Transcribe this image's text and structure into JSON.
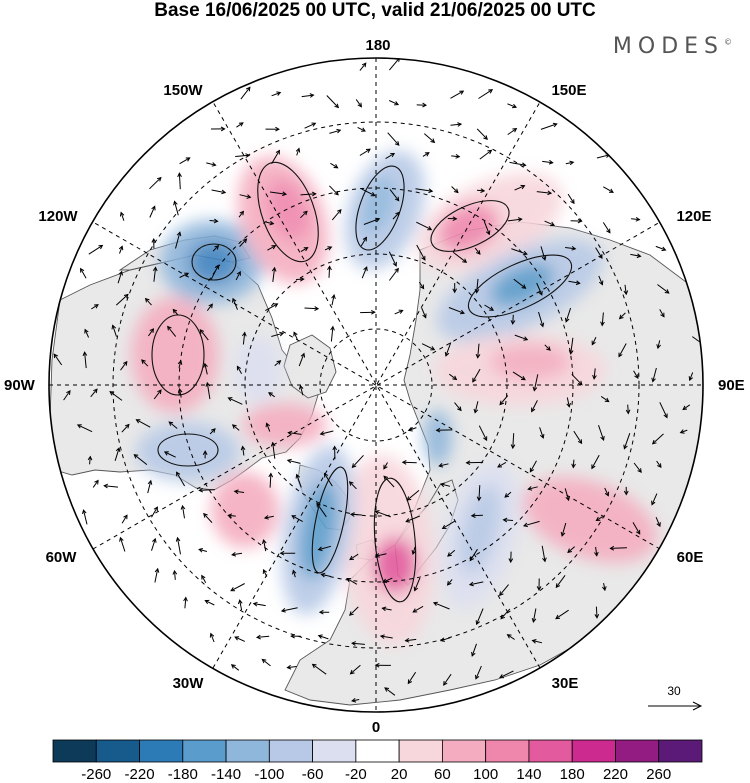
{
  "title": "Base 16/06/2025 00 UTC, valid 21/06/2025 00 UTC",
  "brand": "MODES",
  "brand_mark": "©",
  "longitude_labels": {
    "top": "180",
    "bottom": "0",
    "left": "90W",
    "right": "90E",
    "upper_left_1": "150W",
    "upper_left_2": "120W",
    "lower_left_1": "60W",
    "lower_left_2": "30W",
    "upper_right_1": "150E",
    "upper_right_2": "120E",
    "lower_right_1": "60E",
    "lower_right_2": "30E"
  },
  "vector_reference": {
    "value": "30"
  },
  "colorbar": {
    "ticks": [
      "-260",
      "-220",
      "-180",
      "-140",
      "-100",
      "-60",
      "-20",
      "20",
      "60",
      "100",
      "140",
      "180",
      "220",
      "260"
    ],
    "colors": [
      "#0e3a5a",
      "#175a8c",
      "#2d7bb6",
      "#5a9ccb",
      "#8fb6db",
      "#b7c9e6",
      "#dcdff0",
      "#ffffff",
      "#f7d6dc",
      "#f4adc0",
      "#ef86ac",
      "#e45a9e",
      "#cc2a8e",
      "#931c82",
      "#5c1a78"
    ]
  },
  "colors": {
    "land": "#e9e9e9",
    "ocean": "#ffffff",
    "grid": "#000000"
  }
}
